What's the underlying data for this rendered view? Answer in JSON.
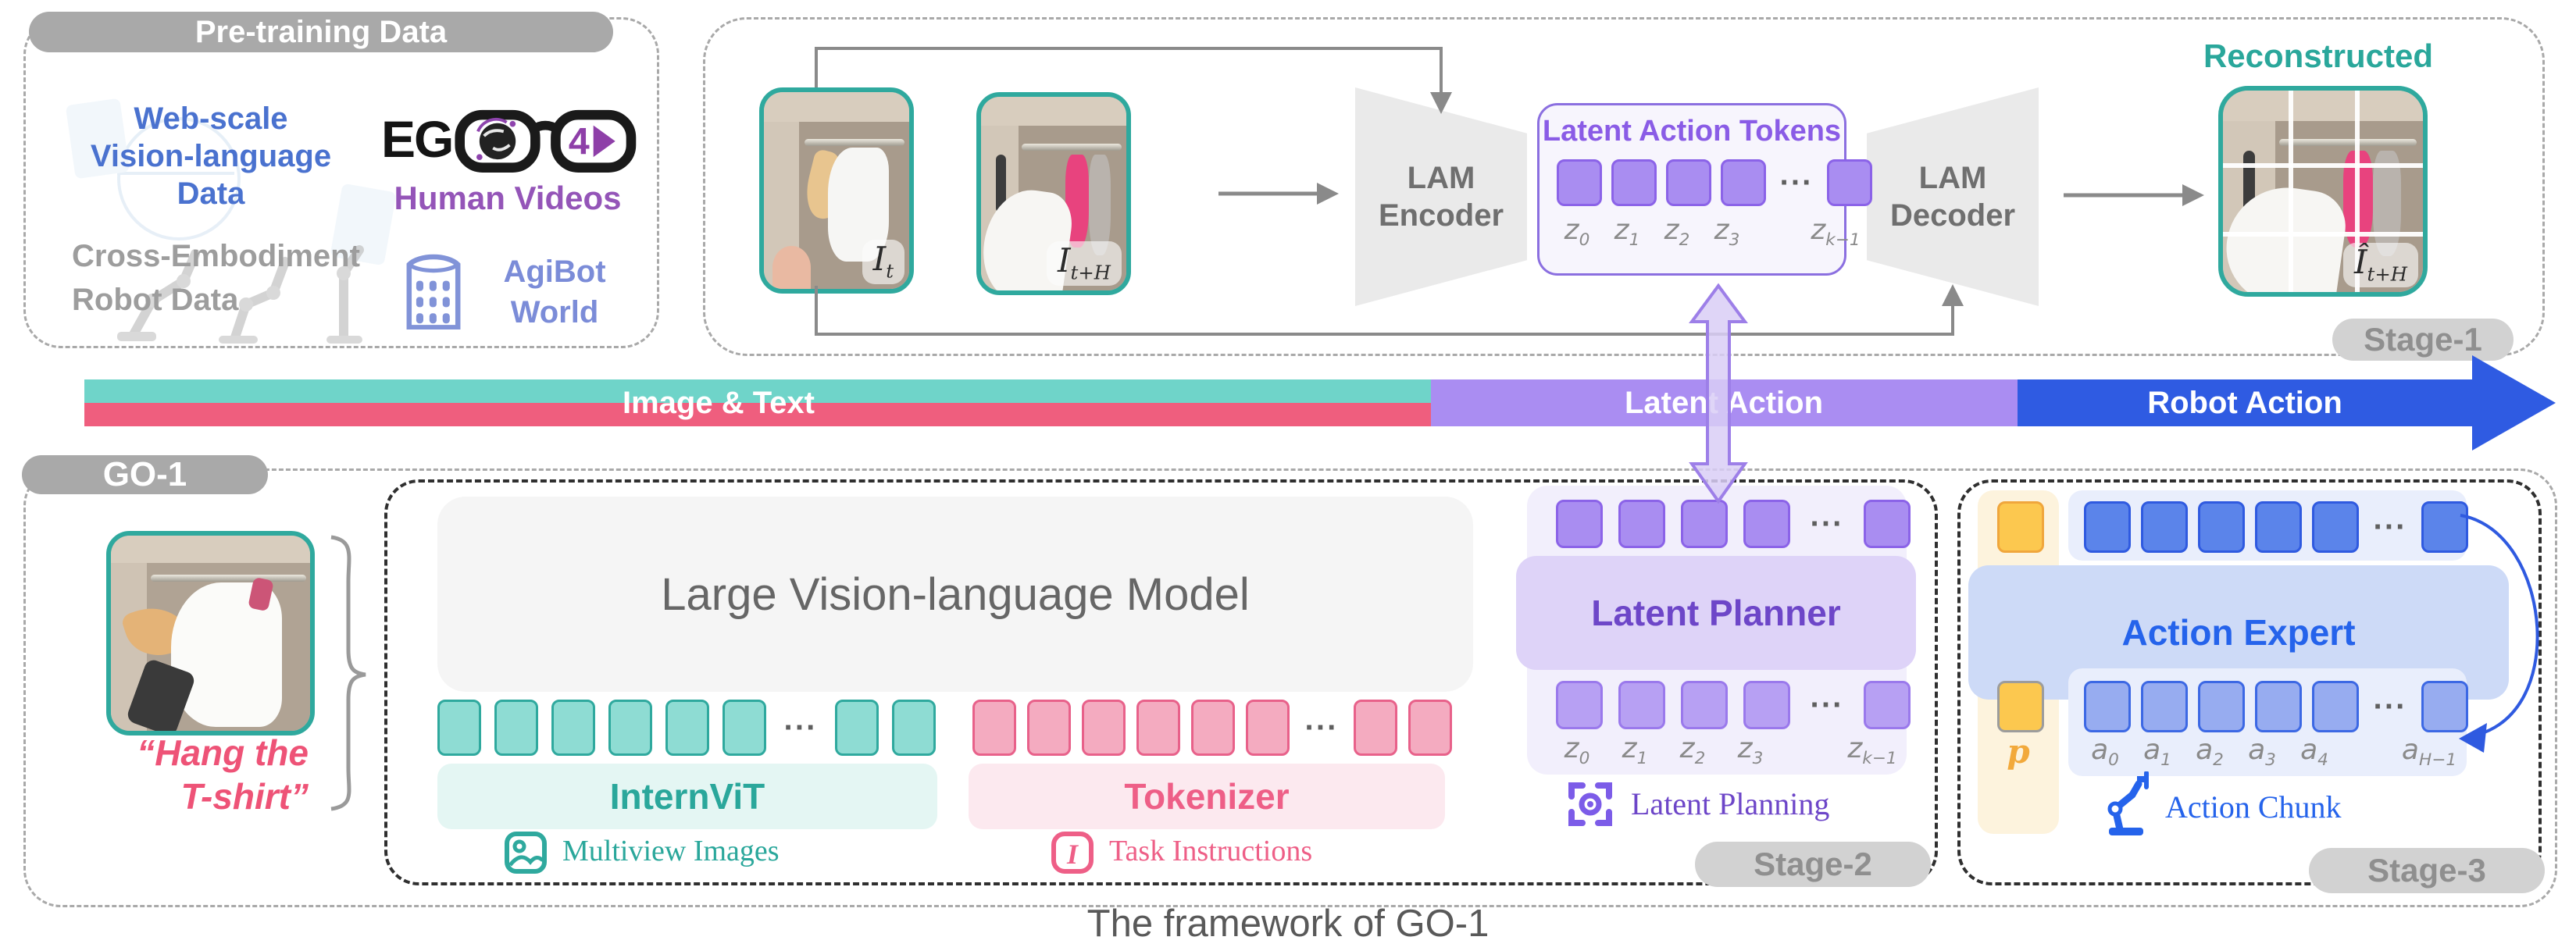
{
  "ui": {
    "dots": "···"
  },
  "pretraining": {
    "title": "Pre-training Data",
    "web_scale_lines": [
      "Web-scale",
      "Vision-language",
      "Data"
    ],
    "ego_prefix": "EG",
    "ego_4d": "4D",
    "human_videos": "Human Videos",
    "cross_embodiment_lines": [
      "Cross-Embodiment",
      "Robot Data"
    ],
    "agibot_lines": [
      "AgiBot",
      "World"
    ]
  },
  "stage1": {
    "label": "Stage-1",
    "frame_t": {
      "b": "I",
      "s": "t"
    },
    "frame_th": {
      "b": "I",
      "s": "t+H"
    },
    "encoder_lines": [
      "LAM",
      "Encoder"
    ],
    "decoder_lines": [
      "LAM",
      "Decoder"
    ],
    "lat_title": "Latent Action Tokens",
    "z_labels": [
      {
        "b": "z",
        "s": "0"
      },
      {
        "b": "z",
        "s": "1"
      },
      {
        "b": "z",
        "s": "2"
      },
      {
        "b": "z",
        "s": "3"
      },
      {
        "b": "z",
        "s": "k−1"
      }
    ],
    "reconstructed": "Reconstructed",
    "recon_label": {
      "b": "Î",
      "s": "t+H"
    }
  },
  "bar": {
    "image_text": "Image & Text",
    "latent_action": "Latent Action",
    "robot_action": "Robot Action"
  },
  "go1": {
    "label": "GO-1",
    "instruction_lines": [
      "“Hang the",
      "T-shirt”"
    ],
    "vlm_title": "Large Vision-language Model",
    "internvit": "InternViT",
    "tokenizer": "Tokenizer",
    "multiview": "Multiview Images",
    "task_instructions": "Task Instructions"
  },
  "stage2": {
    "label": "Stage-2",
    "planner": "Latent Planner",
    "planning": "Latent Planning",
    "z_labels": [
      {
        "b": "z",
        "s": "0"
      },
      {
        "b": "z",
        "s": "1"
      },
      {
        "b": "z",
        "s": "2"
      },
      {
        "b": "z",
        "s": "3"
      },
      {
        "b": "z",
        "s": "k−1"
      }
    ]
  },
  "stage3": {
    "label": "Stage-3",
    "expert": "Action Expert",
    "chunk": "Action Chunk",
    "p_label": "p",
    "a_labels": [
      {
        "b": "a",
        "s": "0"
      },
      {
        "b": "a",
        "s": "1"
      },
      {
        "b": "a",
        "s": "2"
      },
      {
        "b": "a",
        "s": "3"
      },
      {
        "b": "a",
        "s": "4"
      },
      {
        "b": "a",
        "s": "H−1"
      }
    ]
  },
  "caption": "The framework of GO-1",
  "colors": {
    "teal": "#2fa99e",
    "pink": "#ee5f7e",
    "purple": "#8b63e8",
    "blue": "#2f5ae0",
    "bar_teal": "#6fd4c9",
    "bar_pink": "#ef5e7e",
    "bar_purple": "#aa8df2",
    "bar_blue": "#2f5be2",
    "yellow": "#fcc84f",
    "gray_pill": "#a9a9a9",
    "stage_pill": "#d2d2d2"
  }
}
